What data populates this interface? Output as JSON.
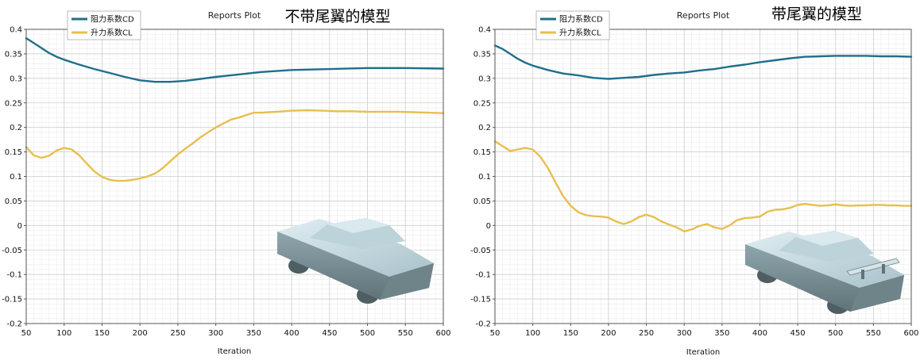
{
  "chart_data": [
    {
      "type": "line",
      "title": "Reports Plot",
      "subtitle": "不带尾翼的模型",
      "xlabel": "Iteration",
      "ylabel": "",
      "xlim": [
        50,
        600
      ],
      "ylim": [
        -0.2,
        0.4
      ],
      "xticks": [
        "50",
        "100",
        "150",
        "200",
        "250",
        "300",
        "350",
        "400",
        "450",
        "500",
        "550",
        "600"
      ],
      "yticks": [
        "0.4",
        "0.35",
        "0.3",
        "0.25",
        "0.2",
        "0.15",
        "0.1",
        "0.05",
        "0",
        "-0.05",
        "-0.1",
        "-0.15",
        "-0.2"
      ],
      "grid": true,
      "legend_position": "top-left",
      "series": [
        {
          "name": "阻力系数CD",
          "color": "#1f6f8b",
          "x": [
            50,
            60,
            70,
            80,
            90,
            100,
            120,
            140,
            160,
            180,
            200,
            220,
            240,
            260,
            280,
            300,
            330,
            360,
            400,
            450,
            500,
            550,
            600
          ],
          "y": [
            0.382,
            0.372,
            0.362,
            0.352,
            0.344,
            0.338,
            0.328,
            0.319,
            0.311,
            0.303,
            0.296,
            0.293,
            0.293,
            0.295,
            0.299,
            0.303,
            0.308,
            0.313,
            0.317,
            0.319,
            0.321,
            0.321,
            0.32
          ]
        },
        {
          "name": "升力系数CL",
          "color": "#e8bf4f",
          "x": [
            50,
            60,
            70,
            80,
            90,
            100,
            110,
            120,
            130,
            140,
            150,
            160,
            170,
            180,
            190,
            200,
            210,
            220,
            230,
            240,
            250,
            260,
            270,
            280,
            290,
            300,
            310,
            320,
            330,
            340,
            350,
            360,
            370,
            380,
            390,
            400,
            420,
            440,
            460,
            480,
            500,
            520,
            540,
            560,
            580,
            600
          ],
          "y": [
            0.16,
            0.143,
            0.138,
            0.142,
            0.153,
            0.158,
            0.155,
            0.143,
            0.126,
            0.11,
            0.099,
            0.093,
            0.091,
            0.091,
            0.093,
            0.096,
            0.1,
            0.106,
            0.117,
            0.131,
            0.145,
            0.157,
            0.168,
            0.18,
            0.19,
            0.2,
            0.208,
            0.216,
            0.22,
            0.225,
            0.23,
            0.23,
            0.231,
            0.232,
            0.233,
            0.234,
            0.235,
            0.234,
            0.233,
            0.233,
            0.232,
            0.232,
            0.232,
            0.231,
            0.23,
            0.229
          ]
        }
      ]
    },
    {
      "type": "line",
      "title": "Reports Plot",
      "subtitle": "带尾翼的模型",
      "xlabel": "Iteration",
      "ylabel": "",
      "xlim": [
        50,
        600
      ],
      "ylim": [
        -0.2,
        0.4
      ],
      "xticks": [
        "50",
        "100",
        "150",
        "200",
        "250",
        "300",
        "350",
        "400",
        "450",
        "500",
        "550",
        "600"
      ],
      "yticks": [
        "0.4",
        "0.35",
        "0.3",
        "0.25",
        "0.2",
        "0.15",
        "0.1",
        "0.05",
        "0",
        "-0.05",
        "-0.1",
        "-0.15",
        "-0.2"
      ],
      "grid": true,
      "legend_position": "top-left",
      "series": [
        {
          "name": "阻力系数CD",
          "color": "#1f6f8b",
          "x": [
            50,
            60,
            70,
            80,
            90,
            100,
            120,
            140,
            160,
            180,
            200,
            220,
            240,
            260,
            280,
            300,
            320,
            340,
            360,
            380,
            400,
            420,
            440,
            460,
            480,
            500,
            520,
            540,
            560,
            580,
            600
          ],
          "y": [
            0.367,
            0.36,
            0.35,
            0.34,
            0.332,
            0.326,
            0.317,
            0.31,
            0.306,
            0.301,
            0.299,
            0.301,
            0.303,
            0.307,
            0.31,
            0.312,
            0.316,
            0.319,
            0.324,
            0.328,
            0.333,
            0.337,
            0.341,
            0.344,
            0.345,
            0.346,
            0.346,
            0.346,
            0.345,
            0.345,
            0.344
          ]
        },
        {
          "name": "升力系数CL",
          "color": "#e8bf4f",
          "x": [
            50,
            60,
            70,
            80,
            90,
            100,
            110,
            120,
            130,
            140,
            150,
            160,
            170,
            180,
            190,
            200,
            210,
            220,
            230,
            240,
            250,
            260,
            270,
            280,
            290,
            300,
            310,
            320,
            330,
            340,
            350,
            360,
            370,
            380,
            390,
            400,
            410,
            420,
            430,
            440,
            450,
            460,
            470,
            480,
            490,
            500,
            510,
            520,
            530,
            540,
            550,
            560,
            570,
            580,
            590,
            600
          ],
          "y": [
            0.172,
            0.162,
            0.152,
            0.155,
            0.158,
            0.155,
            0.14,
            0.117,
            0.088,
            0.06,
            0.04,
            0.027,
            0.021,
            0.019,
            0.018,
            0.016,
            0.008,
            0.003,
            0.008,
            0.017,
            0.022,
            0.017,
            0.008,
            0.002,
            -0.004,
            -0.012,
            -0.008,
            -0.001,
            0.003,
            -0.004,
            -0.007,
            0.0,
            0.011,
            0.015,
            0.016,
            0.018,
            0.028,
            0.032,
            0.033,
            0.036,
            0.042,
            0.044,
            0.042,
            0.04,
            0.041,
            0.043,
            0.041,
            0.04,
            0.041,
            0.041,
            0.042,
            0.042,
            0.041,
            0.041,
            0.04,
            0.04
          ]
        }
      ]
    }
  ],
  "icons": {
    "car_model_left": "car-model-icon",
    "car_model_right": "car-model-with-spoiler-icon"
  }
}
